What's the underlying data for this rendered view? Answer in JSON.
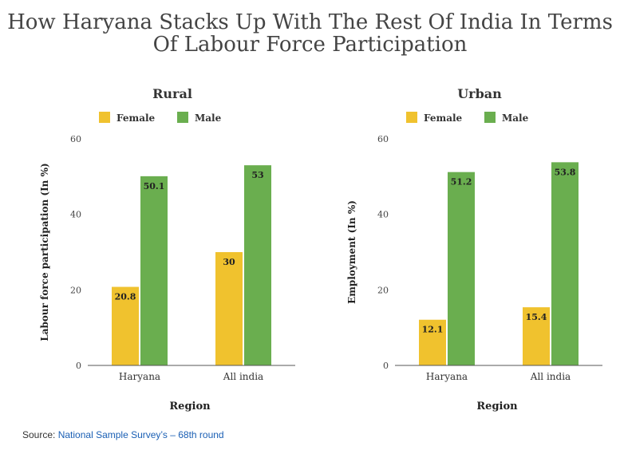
{
  "title": "How Haryana Stacks Up With The Rest Of India In Terms Of Labour Force Participation",
  "source": {
    "label": "Source:",
    "link_text": "National Sample Survey’s – 68th round"
  },
  "colors": {
    "female": "#f0c22e",
    "male": "#6aae4f",
    "axis": "#555555"
  },
  "chart_data": [
    {
      "type": "bar",
      "title": "Rural",
      "categories": [
        "Haryana",
        "All india"
      ],
      "series": [
        {
          "name": "Female",
          "values": [
            20.8,
            30
          ]
        },
        {
          "name": "Male",
          "values": [
            50.1,
            53
          ]
        }
      ],
      "data_labels": [
        [
          "20.8",
          "30"
        ],
        [
          "50.1",
          "53"
        ]
      ],
      "xlabel": "Region",
      "ylabel": "Labour force participation (In %)",
      "ylim": [
        0,
        60
      ],
      "yticks": [
        0,
        20,
        40,
        60
      ],
      "legend": "top",
      "grid": false
    },
    {
      "type": "bar",
      "title": "Urban",
      "categories": [
        "Haryana",
        "All india"
      ],
      "series": [
        {
          "name": "Female",
          "values": [
            12.1,
            15.4
          ]
        },
        {
          "name": "Male",
          "values": [
            51.2,
            53.8
          ]
        }
      ],
      "data_labels": [
        [
          "12.1",
          "15.4"
        ],
        [
          "51.2",
          "53.8"
        ]
      ],
      "xlabel": "Region",
      "ylabel": "Employment (In %)",
      "ylim": [
        0,
        60
      ],
      "yticks": [
        0,
        20,
        40,
        60
      ],
      "legend": "top",
      "grid": false
    }
  ]
}
